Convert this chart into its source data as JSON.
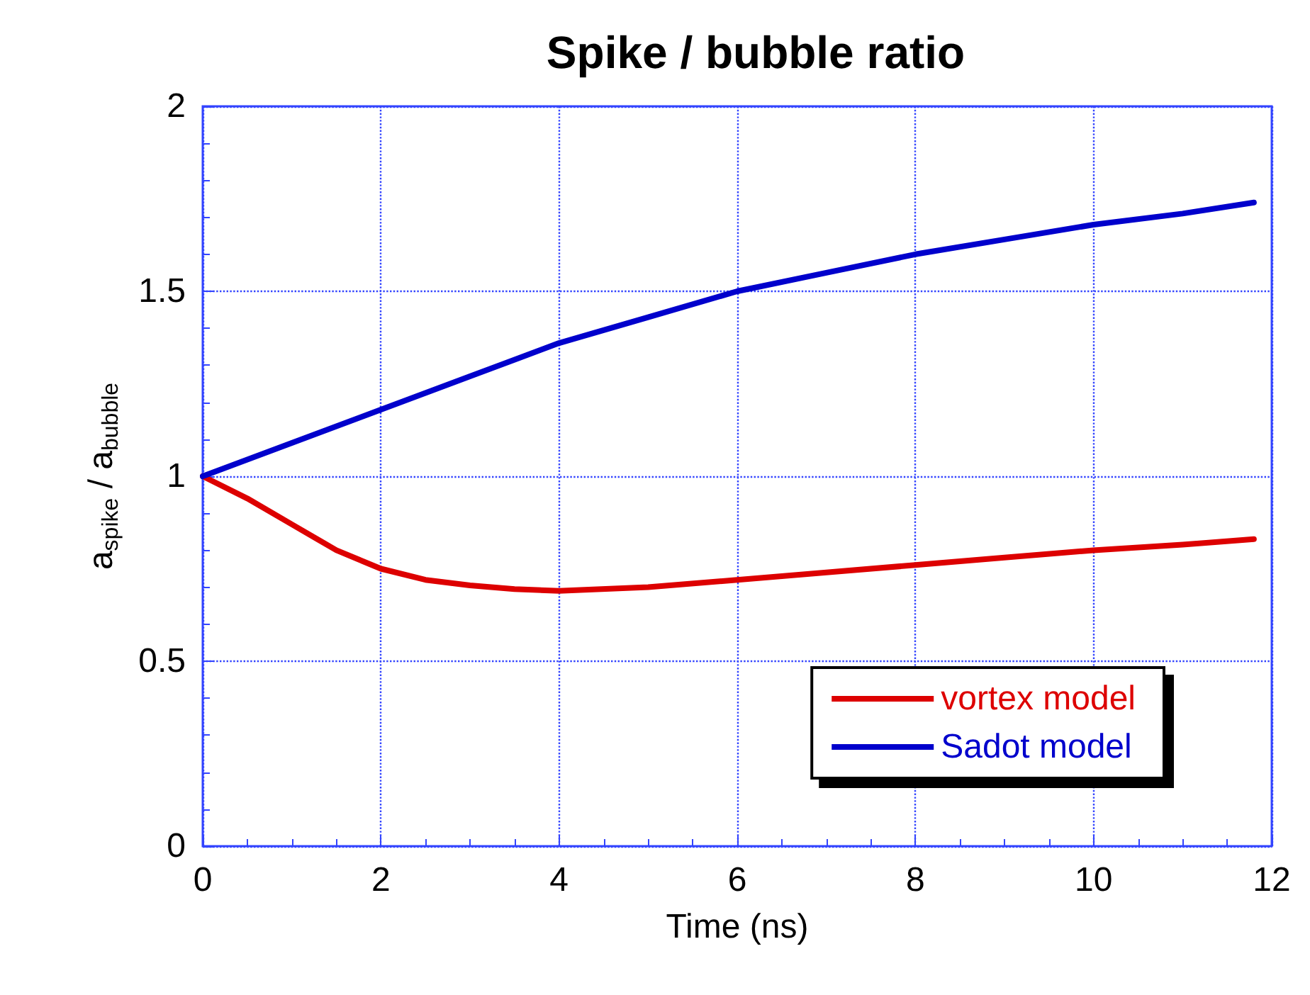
{
  "chart_data": {
    "type": "line",
    "title": "Spike / bubble ratio",
    "xlabel": "Time (ns)",
    "ylabel": "a$_{spike}$ / a$_{bubble}$",
    "xlim": [
      0,
      12
    ],
    "xticks": [
      0,
      2,
      4,
      6,
      8,
      10,
      12
    ],
    "ylim": [
      0,
      2
    ],
    "yticks": [
      0,
      0.5,
      1,
      1.5,
      2
    ],
    "grid": true,
    "legend": "bottom right",
    "line_style": "solid",
    "marker": "none",
    "series": [
      {
        "name": "vortex model",
        "color": "#dd0000",
        "x": [
          0,
          0.5,
          1,
          1.5,
          2,
          2.5,
          3,
          3.5,
          4,
          5,
          6,
          7,
          8,
          9,
          10,
          11,
          11.8
        ],
        "values": [
          1,
          0.94,
          0.87,
          0.8,
          0.75,
          0.72,
          0.705,
          0.695,
          0.69,
          0.7,
          0.72,
          0.74,
          0.76,
          0.78,
          0.8,
          0.815,
          0.83
        ]
      },
      {
        "name": "Sadot model",
        "color": "#0000cc",
        "x": [
          0,
          1,
          2,
          3,
          4,
          5,
          6,
          7,
          8,
          9,
          10,
          11,
          11.8
        ],
        "values": [
          1,
          1.09,
          1.18,
          1.27,
          1.36,
          1.43,
          1.5,
          1.55,
          1.6,
          1.64,
          1.68,
          1.71,
          1.74
        ]
      }
    ]
  }
}
